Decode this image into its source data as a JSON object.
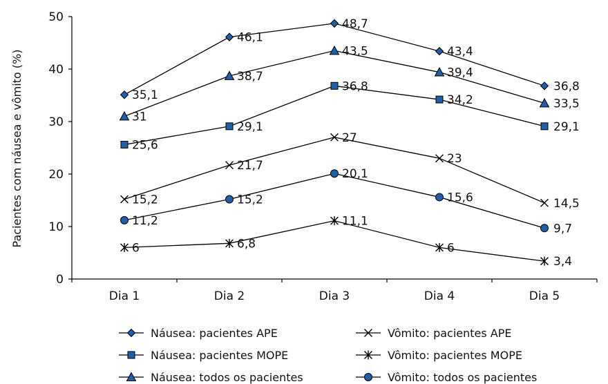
{
  "chart_data": {
    "type": "line",
    "categories": [
      "Dia 1",
      "Dia 2",
      "Dia 3",
      "Dia 4",
      "Dia 5"
    ],
    "ylabel": "Pacientes com náusea e vômito (%)",
    "ylim": [
      0,
      50
    ],
    "yticks": [
      "0",
      "10",
      "20",
      "30",
      "40",
      "50"
    ],
    "grid": false,
    "legend_position": "bottom",
    "series": [
      {
        "name": "Náusea: pacientes APE",
        "marker": "diamond",
        "color": "#1f5fa8",
        "values": [
          35.1,
          46.1,
          48.7,
          43.4,
          36.8
        ],
        "labels": [
          "35,1",
          "46,1",
          "48,7",
          "43,4",
          "36,8"
        ]
      },
      {
        "name": "Náusea: pacientes MOPE",
        "marker": "square",
        "color": "#1f5fa8",
        "values": [
          25.6,
          29.1,
          36.8,
          34.2,
          29.1
        ],
        "labels": [
          "25,6",
          "29,1",
          "36,8",
          "34,2",
          "29,1"
        ]
      },
      {
        "name": "Náusea: todos os pacientes",
        "marker": "triangle",
        "color": "#1f5fa8",
        "values": [
          31,
          38.7,
          43.5,
          39.4,
          33.5
        ],
        "labels": [
          "31",
          "38,7",
          "43,5",
          "39,4",
          "33,5"
        ]
      },
      {
        "name": "Vômito: pacientes APE",
        "marker": "x",
        "color": "#000000",
        "values": [
          15.2,
          21.7,
          27,
          23,
          14.5
        ],
        "labels": [
          "15,2",
          "21,7",
          "27",
          "23",
          "14,5"
        ]
      },
      {
        "name": "Vômito: pacientes MOPE",
        "marker": "star",
        "color": "#000000",
        "values": [
          6,
          6.8,
          11.1,
          6,
          3.4
        ],
        "labels": [
          "6",
          "6,8",
          "11,1",
          "6",
          "3,4"
        ]
      },
      {
        "name": "Vômito: todos os pacientes",
        "marker": "circle",
        "color": "#1f5fa8",
        "values": [
          11.2,
          15.2,
          20.1,
          15.6,
          9.7
        ],
        "labels": [
          "11,2",
          "15,2",
          "20,1",
          "15,6",
          "9,7"
        ]
      }
    ]
  }
}
